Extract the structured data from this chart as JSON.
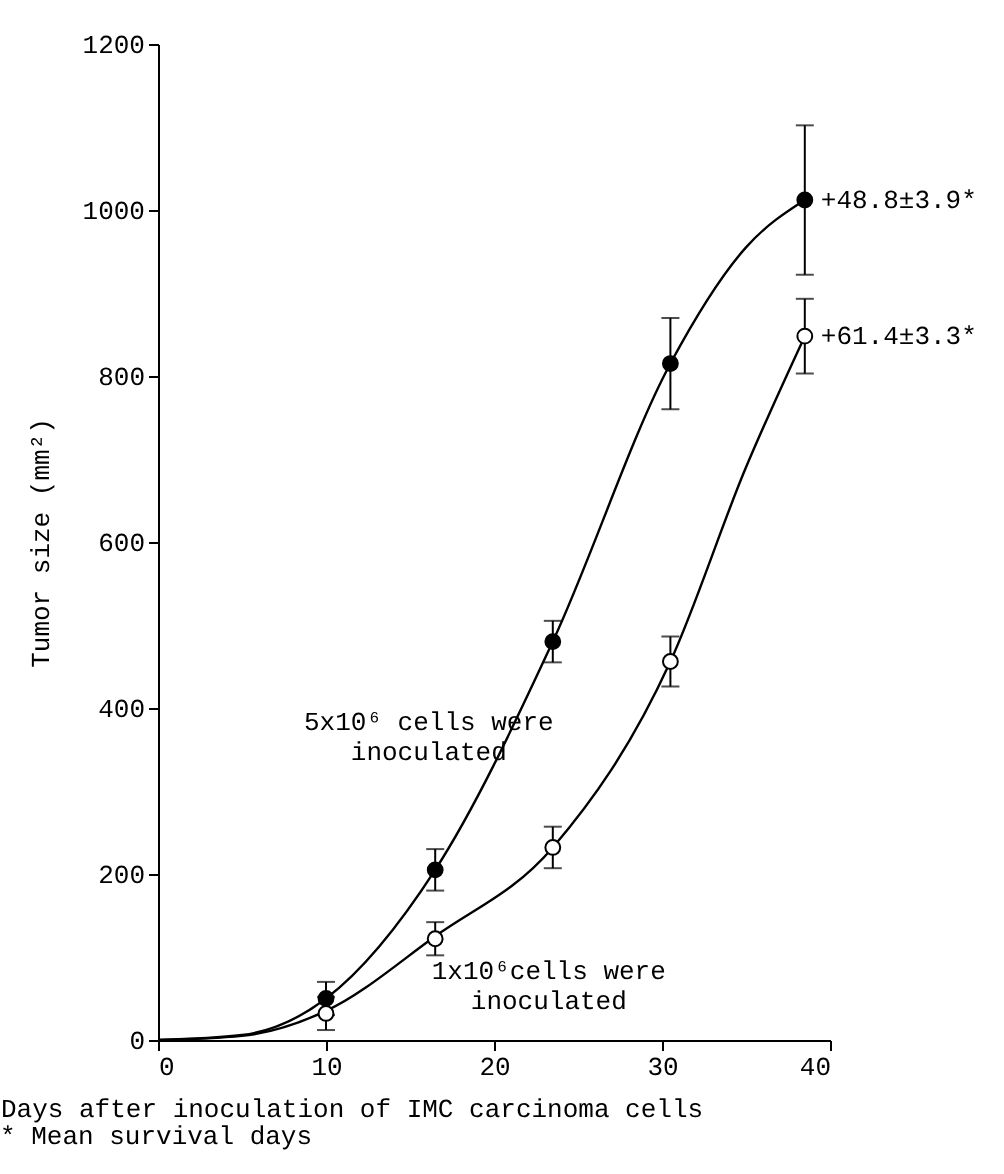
{
  "chart_data": {
    "type": "line",
    "xlabel": "Days after inoculation of IMC carcinoma cells",
    "ylabel": "Tumor size (mm²)",
    "xlim": [
      0,
      40
    ],
    "xticks": [
      0,
      10,
      20,
      30,
      40
    ],
    "ylim": [
      0,
      1200
    ],
    "yticks": [
      0,
      200,
      400,
      600,
      800,
      1000,
      1200
    ],
    "grid": false,
    "series": [
      {
        "color": "#000000",
        "x": [
          0,
          5,
          10,
          16.5,
          23.5,
          30.5,
          35,
          38.5
        ],
        "values": [
          0,
          6,
          50,
          205,
          480,
          815,
          955,
          1012
        ],
        "marker": "none"
      },
      {
        "color": "#000000",
        "x": [
          0,
          5,
          10,
          16.5,
          23.5,
          30.5,
          35,
          38.5
        ],
        "values": [
          0,
          5,
          35,
          125,
          232,
          456,
          690,
          848
        ],
        "marker": "none"
      },
      {
        "type": "scatter",
        "name": "5x10⁶ cells were inoculated",
        "color": "#000000",
        "x": [
          10,
          16.5,
          23.5,
          30.5,
          38.5
        ],
        "values": [
          50,
          205,
          480,
          815,
          1012
        ],
        "errors": [
          20,
          25,
          25,
          55,
          90
        ],
        "marker": "circle"
      },
      {
        "type": "scatter",
        "name": "1x10⁶cells were inoculated",
        "color": "#ffffff",
        "x": [
          10,
          16.5,
          23.5,
          30.5,
          38.5
        ],
        "values": [
          32,
          122,
          232,
          456,
          848
        ],
        "errors": [
          20,
          20,
          25,
          30,
          45
        ],
        "marker": "circle"
      }
    ],
    "annotations": [
      {
        "text": "+48.8±3.9*",
        "x": 38.5,
        "y": 1012
      },
      {
        "text": "+61.4±3.3*",
        "x": 38.5,
        "y": 848
      },
      "* Mean survival days"
    ]
  }
}
